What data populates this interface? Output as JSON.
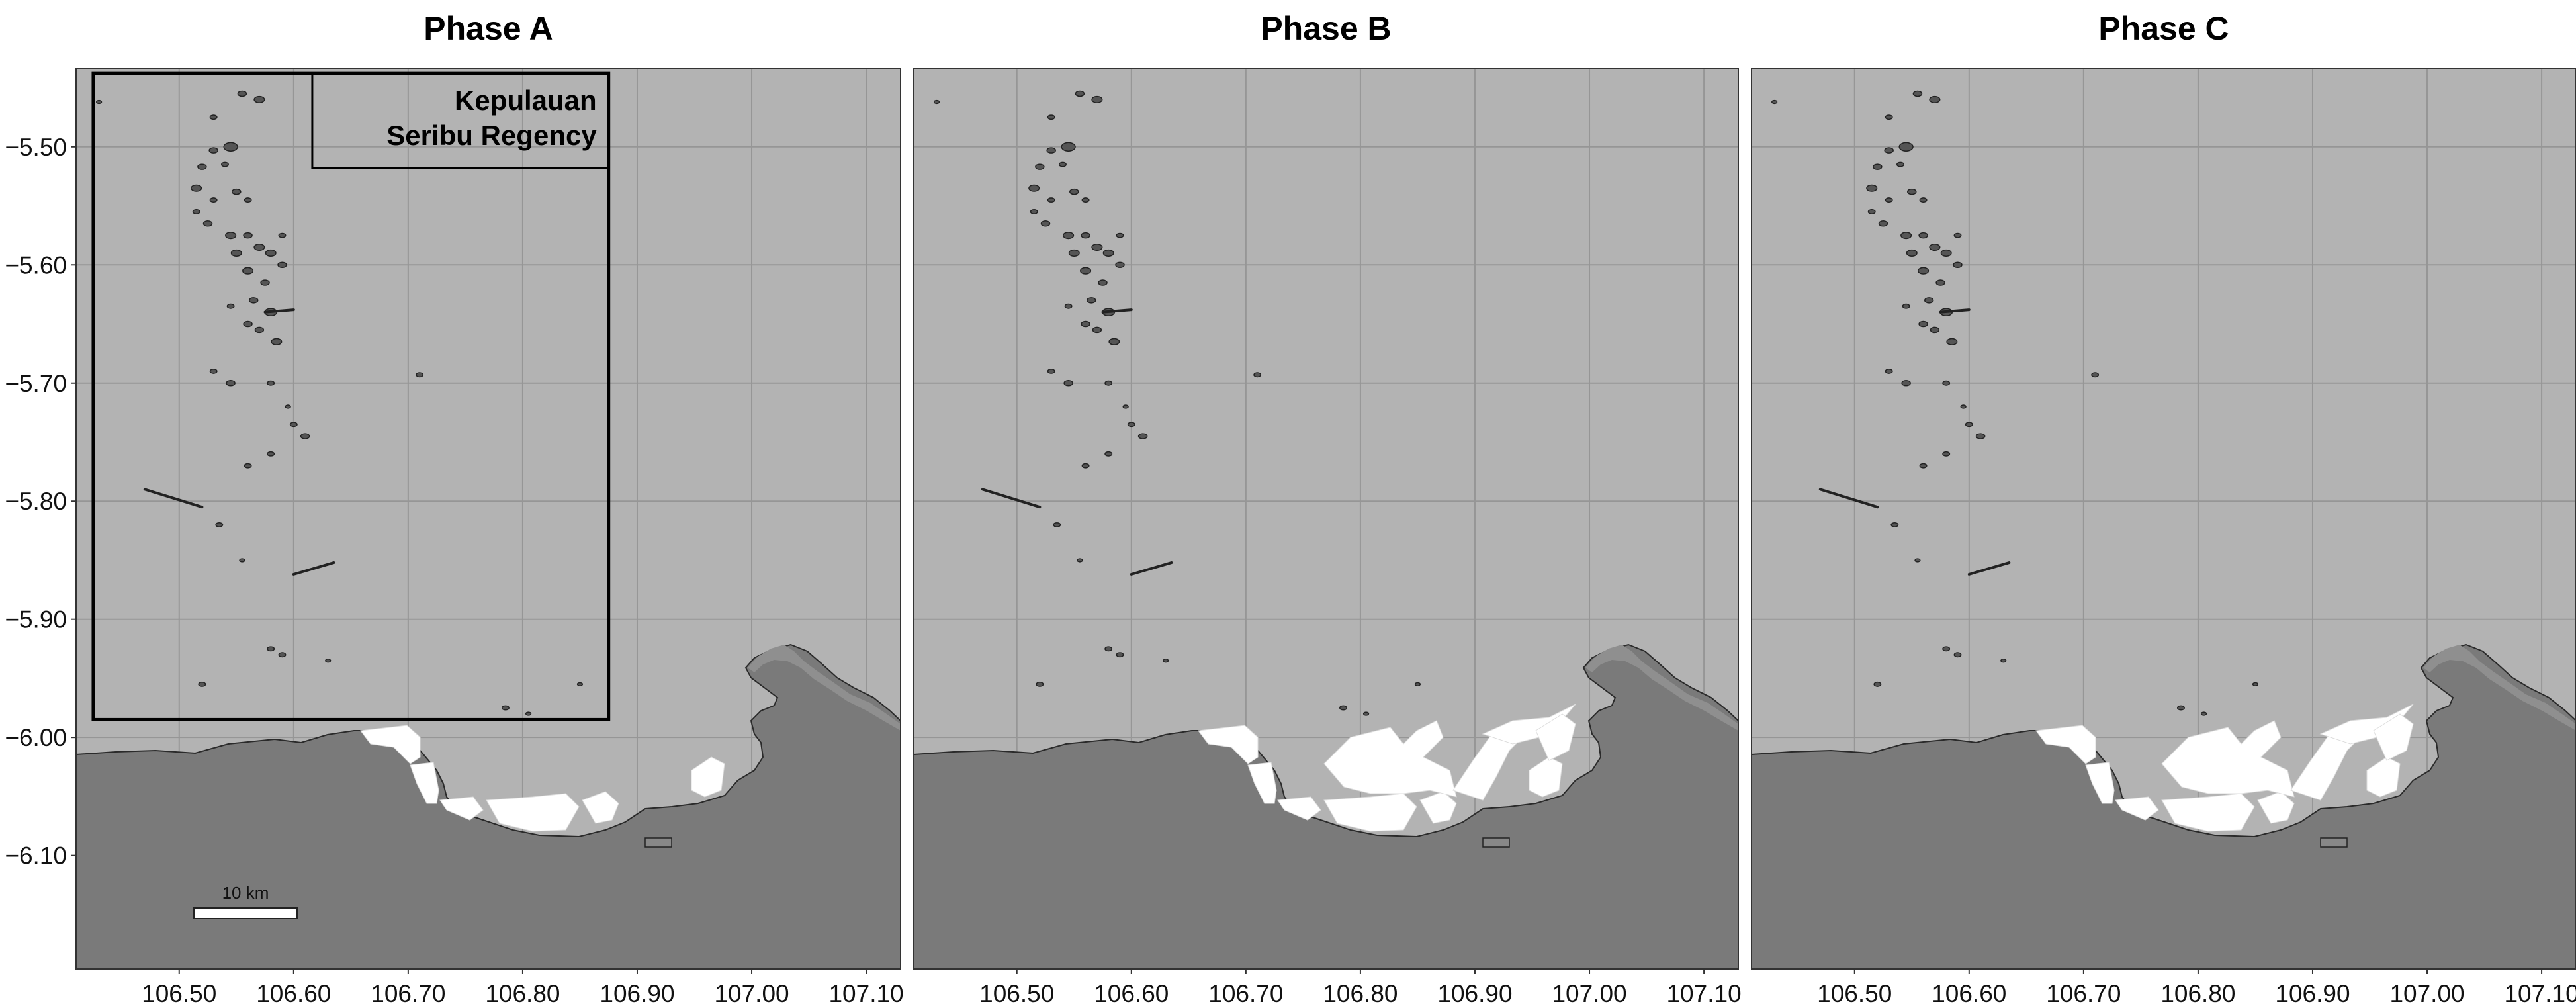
{
  "panels": [
    {
      "id": "a",
      "title": "Phase A",
      "phase_index": 0
    },
    {
      "id": "b",
      "title": "Phase B",
      "phase_index": 1
    },
    {
      "id": "c",
      "title": "Phase C",
      "phase_index": 2
    }
  ],
  "axes": {
    "lon_ticks": [
      "106.50",
      "106.60",
      "106.70",
      "106.80",
      "106.90",
      "107.00",
      "107.10"
    ],
    "lat_ticks": [
      "−5.50",
      "−5.60",
      "−5.70",
      "−5.80",
      "−5.90",
      "−6.00",
      "−6.10"
    ],
    "lon_range": [
      106.41,
      107.13
    ],
    "lat_range": [
      -5.434,
      -6.196
    ]
  },
  "inset": {
    "label_line1": "Kepulauan",
    "label_line2": "Seribu Regency",
    "lon_range": [
      106.425,
      106.875
    ],
    "lat_range": [
      -5.438,
      -5.985
    ]
  },
  "scale_bar": {
    "label": "10 km"
  },
  "colors": {
    "sea": "#b3b3b3",
    "land": "#7a7a7a",
    "land_shelf": "#8f8f8f",
    "reclamation": "#ffffff",
    "grid": "#969696",
    "island": "#555555"
  }
}
